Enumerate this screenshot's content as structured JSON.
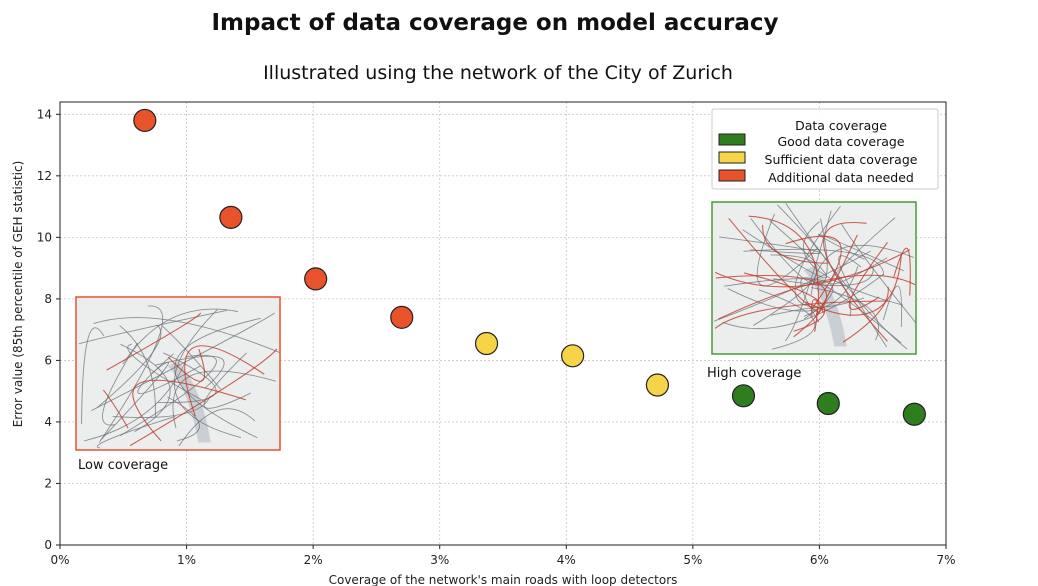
{
  "title": "Impact of data coverage on model accuracy",
  "subtitle": "Illustrated using the network of the City of Zurich",
  "chart_data": {
    "type": "scatter",
    "xlabel": "Coverage of the network's main roads with loop detectors",
    "ylabel": "Error value (85th percentile of GEH statistic)",
    "xlim": [
      0,
      7
    ],
    "ylim": [
      0,
      14.4
    ],
    "x_ticks": [
      0,
      1,
      2,
      3,
      4,
      5,
      6,
      7
    ],
    "x_tick_labels": [
      "0%",
      "1%",
      "2%",
      "3%",
      "4%",
      "5%",
      "6%",
      "7%"
    ],
    "y_ticks": [
      0,
      2,
      4,
      6,
      8,
      10,
      12,
      14
    ],
    "y_tick_labels": [
      "0",
      "2",
      "4",
      "6",
      "8",
      "10",
      "12",
      "14"
    ],
    "grid": true,
    "legend": {
      "title": "Data coverage",
      "placement": "top-right",
      "entries": [
        {
          "label": "Good data coverage",
          "color": "#2e7d1f"
        },
        {
          "label": "Sufficient data coverage",
          "color": "#f5d547"
        },
        {
          "label": "Additional data needed",
          "color": "#e8532b"
        }
      ]
    },
    "series": [
      {
        "name": "Additional data needed",
        "color": "#e8532b",
        "x": [
          0.67,
          1.35,
          2.02,
          2.7
        ],
        "y": [
          13.8,
          10.65,
          8.65,
          7.4
        ]
      },
      {
        "name": "Sufficient data coverage",
        "color": "#f5d547",
        "x": [
          3.37,
          4.05,
          4.72
        ],
        "y": [
          6.55,
          6.15,
          5.2
        ]
      },
      {
        "name": "Good data coverage",
        "color": "#2e7d1f",
        "x": [
          5.4,
          6.07,
          6.75
        ],
        "y": [
          4.85,
          4.6,
          4.25
        ]
      }
    ],
    "insets": [
      {
        "caption": "Low coverage",
        "border_color": "#e8532b"
      },
      {
        "caption": "High coverage",
        "border_color": "#4a9a3a"
      }
    ]
  }
}
